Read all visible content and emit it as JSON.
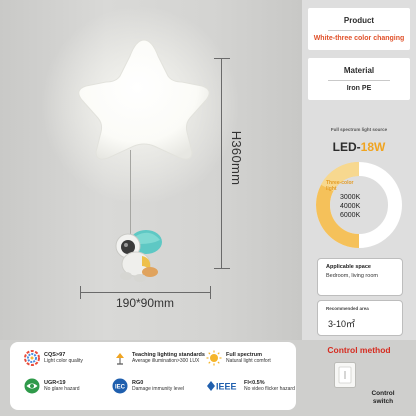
{
  "dimensions": {
    "height": "H360mm",
    "width_depth": "190*90mm"
  },
  "product": {
    "title": "Product",
    "value": "White-three color changing"
  },
  "material": {
    "title": "Material",
    "value": "Iron PE"
  },
  "light": {
    "full_spectrum_label": "Full spectrum light source",
    "led_prefix": "LED-",
    "wattage": "18W",
    "three_color_label": "Three-color light",
    "temperatures": [
      "3000K",
      "4000K",
      "6000K"
    ]
  },
  "space": {
    "title": "Applicable space",
    "value": "Bedroom, living room"
  },
  "area": {
    "title": "Recommended area",
    "value": "3-10㎡"
  },
  "features": [
    {
      "icon": "color-quality-icon",
      "line1": "CQS>97",
      "line2": "Light color quality"
    },
    {
      "icon": "desk-lamp-icon",
      "line1": "Teaching lighting standards",
      "line2": "Average illumination>300 LUX"
    },
    {
      "icon": "sun-icon",
      "line1": "Full spectrum",
      "line2": "Natural light comfort"
    },
    {
      "icon": "eye-icon",
      "line1": "UGR<19",
      "line2": "No glare hazard"
    },
    {
      "icon": "iec-badge-icon",
      "line1": "RG0",
      "line2": "Damage immunity level"
    },
    {
      "icon": "ieee-logo-icon",
      "line1": "FI<0.5%",
      "line2": "No video flicker hazard"
    }
  ],
  "ieee_mark": "IEEE",
  "iec_mark": "IEC",
  "control": {
    "title": "Control method",
    "label": "Control switch"
  },
  "colors": {
    "accent_red": "#d62c20",
    "warm_orange": "#f0a420",
    "product_value": "#e0512a"
  }
}
